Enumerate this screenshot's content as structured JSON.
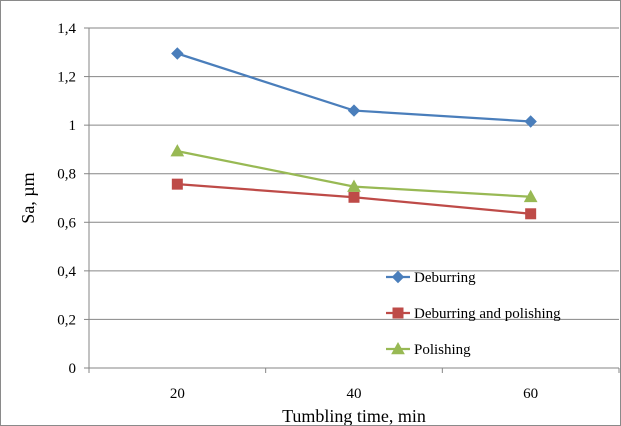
{
  "chart_data": {
    "type": "line",
    "title": "",
    "xlabel": "Tumbling time, min",
    "ylabel": "Sa, µm",
    "x": [
      20,
      40,
      60
    ],
    "x_tick_labels": [
      "20",
      "40",
      "60"
    ],
    "ylim": [
      0,
      1.4
    ],
    "y_ticks": [
      0,
      0.2,
      0.4,
      0.6,
      0.8,
      1.0,
      1.2,
      1.4
    ],
    "y_tick_labels": [
      "0",
      "0,2",
      "0,4",
      "0,6",
      "0,8",
      "1",
      "1,2",
      "1,4"
    ],
    "grid": "horizontal",
    "legend_position": "bottom-right inside plot",
    "series": [
      {
        "name": "Deburring",
        "values": [
          1.295,
          1.06,
          1.015
        ],
        "color": "#4a7ebb",
        "marker": "diamond"
      },
      {
        "name": "Deburring and polishing",
        "values": [
          0.757,
          0.703,
          0.635
        ],
        "color": "#be4b48",
        "marker": "square"
      },
      {
        "name": "Polishing",
        "values": [
          0.893,
          0.747,
          0.705
        ],
        "color": "#98b954",
        "marker": "triangle"
      }
    ]
  }
}
